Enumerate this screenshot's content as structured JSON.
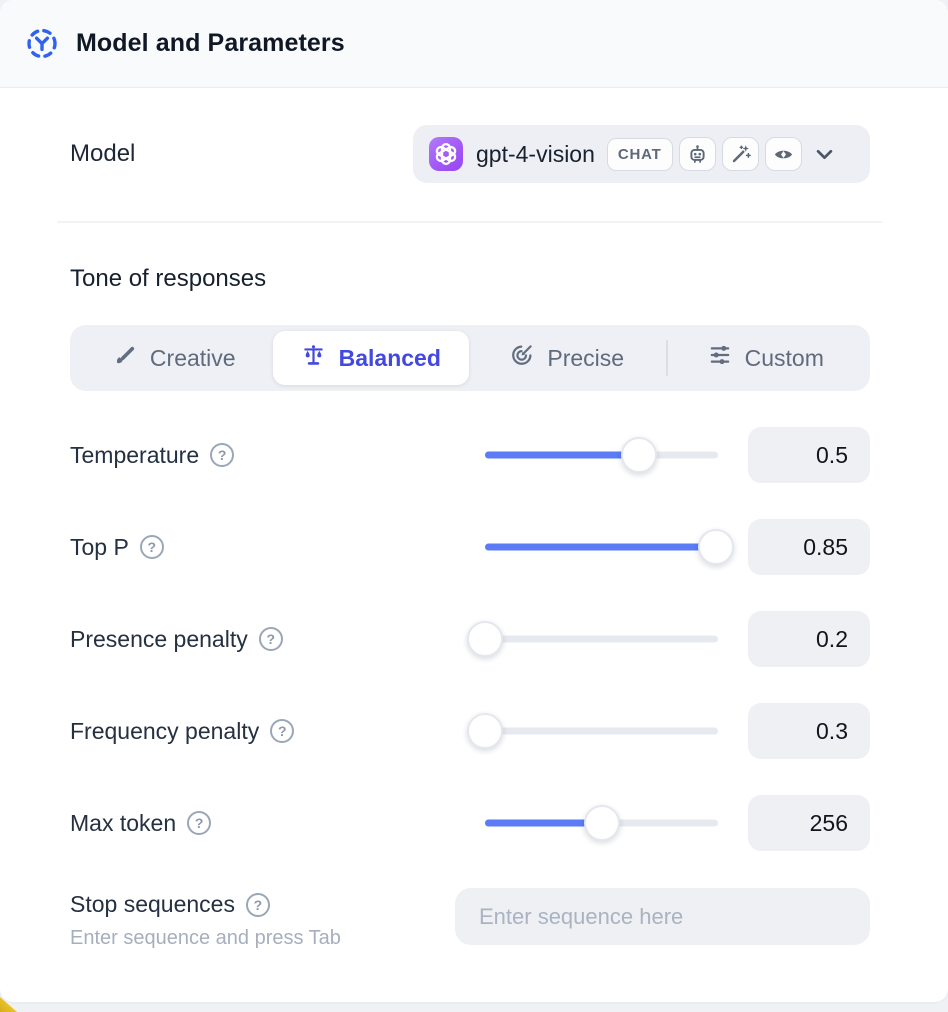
{
  "header": {
    "title": "Model and Parameters",
    "icon": "model-hub-icon"
  },
  "model_row": {
    "label": "Model",
    "selected_model": "gpt-4-vision",
    "provider_icon": "openai-logo",
    "type_badge": "CHAT",
    "capability_icons": [
      "robot-icon",
      "magic-wand-icon",
      "vision-eye-icon"
    ],
    "chevron_icon": "chevron-down-icon"
  },
  "tone": {
    "heading": "Tone of responses",
    "selected": "Balanced",
    "options": [
      {
        "label": "Creative",
        "icon": "paintbrush-icon",
        "selected": false
      },
      {
        "label": "Balanced",
        "icon": "scales-icon",
        "selected": true
      },
      {
        "label": "Precise",
        "icon": "target-icon",
        "selected": false
      },
      {
        "label": "Custom",
        "icon": "sliders-icon",
        "selected": false
      }
    ]
  },
  "parameters": [
    {
      "label": "Temperature",
      "value": "0.5",
      "percent": 66,
      "help_icon": "help-icon"
    },
    {
      "label": "Top P",
      "value": "0.85",
      "percent": 99,
      "help_icon": "help-icon"
    },
    {
      "label": "Presence penalty",
      "value": "0.2",
      "percent": 0,
      "help_icon": "help-icon"
    },
    {
      "label": "Frequency penalty",
      "value": "0.3",
      "percent": 0,
      "help_icon": "help-icon"
    },
    {
      "label": "Max token",
      "value": "256",
      "percent": 50,
      "help_icon": "help-icon"
    }
  ],
  "stop_sequences": {
    "label": "Stop sequences",
    "hint": "Enter sequence and press Tab",
    "placeholder": "Enter sequence here",
    "help_icon": "help-icon"
  },
  "colors": {
    "accent_blue": "#2f62f1",
    "slider_fill": "#5b7bf7",
    "selected_tab": "#4348e0",
    "provider_purple": "#a259f7",
    "header_bg": "#f8fafc",
    "control_bg": "#eef0f4",
    "corner_accent_yellow": "#ecc72e"
  },
  "help_symbol": "?"
}
